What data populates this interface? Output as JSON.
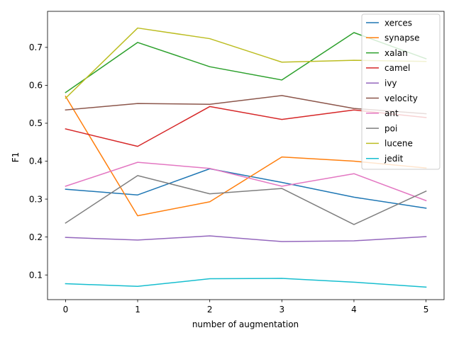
{
  "chart_data": {
    "type": "line",
    "title": "",
    "xlabel": "number of augmentation",
    "ylabel": "F1",
    "x": [
      0,
      1,
      2,
      3,
      4,
      5
    ],
    "xticks": [
      "0",
      "1",
      "2",
      "3",
      "4",
      "5"
    ],
    "yticks": [
      "0.1",
      "0.2",
      "0.3",
      "0.4",
      "0.5",
      "0.6",
      "0.7"
    ],
    "xlim": [
      -0.25,
      5.25
    ],
    "ylim": [
      0.035,
      0.795
    ],
    "grid": false,
    "legend_position": "top-right",
    "series": [
      {
        "name": "xerces",
        "color": "#1f77b4",
        "values": [
          0.326,
          0.311,
          0.38,
          0.344,
          0.305,
          0.276
        ]
      },
      {
        "name": "synapse",
        "color": "#ff7f0e",
        "values": [
          0.571,
          0.256,
          0.293,
          0.411,
          0.4,
          0.382
        ]
      },
      {
        "name": "xalan",
        "color": "#2ca02c",
        "values": [
          0.581,
          0.713,
          0.649,
          0.614,
          0.739,
          0.67
        ]
      },
      {
        "name": "camel",
        "color": "#d62728",
        "values": [
          0.485,
          0.439,
          0.544,
          0.51,
          0.535,
          0.515
        ]
      },
      {
        "name": "ivy",
        "color": "#9467bd",
        "values": [
          0.199,
          0.192,
          0.203,
          0.188,
          0.19,
          0.201
        ]
      },
      {
        "name": "velocity",
        "color": "#8c564b",
        "values": [
          0.535,
          0.552,
          0.55,
          0.573,
          0.539,
          0.525
        ]
      },
      {
        "name": "ant",
        "color": "#e377c2",
        "values": [
          0.334,
          0.397,
          0.381,
          0.334,
          0.367,
          0.296
        ]
      },
      {
        "name": "poi",
        "color": "#7f7f7f",
        "values": [
          0.237,
          0.362,
          0.314,
          0.328,
          0.233,
          0.321
        ]
      },
      {
        "name": "lucene",
        "color": "#bcbd22",
        "values": [
          0.566,
          0.751,
          0.723,
          0.661,
          0.666,
          0.663
        ]
      },
      {
        "name": "jedit",
        "color": "#17becf",
        "values": [
          0.077,
          0.07,
          0.09,
          0.091,
          0.081,
          0.068
        ]
      }
    ]
  }
}
